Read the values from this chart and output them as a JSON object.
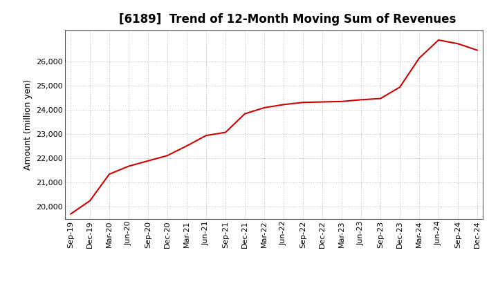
{
  "title": "[6189]  Trend of 12-Month Moving Sum of Revenues",
  "ylabel": "Amount (million yen)",
  "background_color": "#ffffff",
  "line_color": "#cc0000",
  "grid_color": "#bbbbbb",
  "title_fontsize": 12,
  "label_fontsize": 9,
  "tick_fontsize": 8,
  "x_labels": [
    "Sep-19",
    "Dec-19",
    "Mar-20",
    "Jun-20",
    "Sep-20",
    "Dec-20",
    "Mar-21",
    "Jun-21",
    "Sep-21",
    "Dec-21",
    "Mar-22",
    "Jun-22",
    "Sep-22",
    "Dec-22",
    "Mar-23",
    "Jun-23",
    "Sep-23",
    "Dec-23",
    "Mar-24",
    "Jun-24",
    "Sep-24",
    "Dec-24"
  ],
  "y_values": [
    19700,
    20250,
    21350,
    21680,
    21900,
    22120,
    22520,
    22950,
    23080,
    23850,
    24100,
    24230,
    24320,
    24340,
    24360,
    24430,
    24480,
    24950,
    26150,
    26900,
    26750,
    26480
  ],
  "ylim": [
    19500,
    27300
  ],
  "yticks": [
    20000,
    21000,
    22000,
    23000,
    24000,
    25000,
    26000
  ]
}
